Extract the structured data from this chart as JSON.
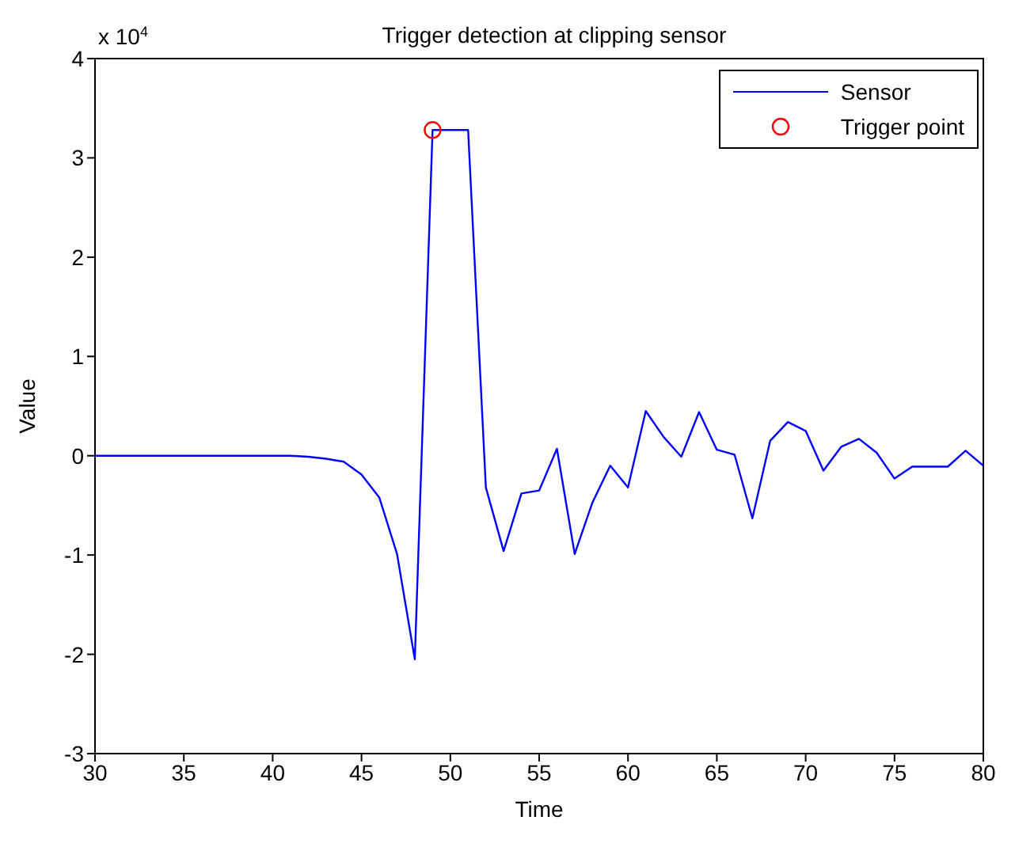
{
  "chart_data": {
    "type": "line",
    "title": "Trigger detection at clipping sensor",
    "xlabel": "Time",
    "ylabel": "Value",
    "annotations": [
      "x 10$^{4}$"
    ],
    "x": [
      30,
      31,
      32,
      33,
      34,
      35,
      36,
      37,
      38,
      39,
      40,
      41,
      42,
      43,
      44,
      45,
      46,
      47,
      48,
      49,
      50,
      51,
      52,
      53,
      54,
      55,
      56,
      57,
      58,
      59,
      60,
      61,
      62,
      63,
      64,
      65,
      66,
      67,
      68,
      69,
      70,
      71,
      72,
      73,
      74,
      75,
      76,
      77,
      78,
      79,
      80
    ],
    "series": [
      {
        "name": "Sensor",
        "color": "#0000ff",
        "marker": "none",
        "line_style": "solid",
        "values": [
          0,
          0,
          0,
          0,
          0,
          0,
          0,
          0,
          0,
          0,
          0,
          0,
          -0.01,
          -0.03,
          -0.06,
          -0.19,
          -0.42,
          -0.99,
          -2.05,
          3.28,
          3.28,
          3.28,
          -0.32,
          -0.96,
          -0.38,
          -0.35,
          0.07,
          -0.99,
          -0.47,
          -0.1,
          -0.32,
          0.45,
          0.19,
          -0.01,
          0.44,
          0.06,
          0.01,
          -0.63,
          0.15,
          0.34,
          0.25,
          -0.15,
          0.09,
          0.17,
          0.03,
          -0.23,
          -0.11,
          -0.11,
          -0.11,
          0.05,
          -0.1
        ]
      },
      {
        "name": "Trigger point",
        "type": "scatter",
        "color": "#ff0000",
        "marker": "circle",
        "x": [
          49
        ],
        "values": [
          3.28
        ]
      }
    ],
    "xlim": [
      30,
      80
    ],
    "xticks": [
      30,
      35,
      40,
      45,
      50,
      55,
      60,
      65,
      70,
      75,
      80
    ],
    "ylim": [
      -3,
      4
    ],
    "yticks": [
      -3,
      -2,
      -1,
      0,
      1,
      2,
      3,
      4
    ],
    "grid": false,
    "legend": "top right"
  }
}
